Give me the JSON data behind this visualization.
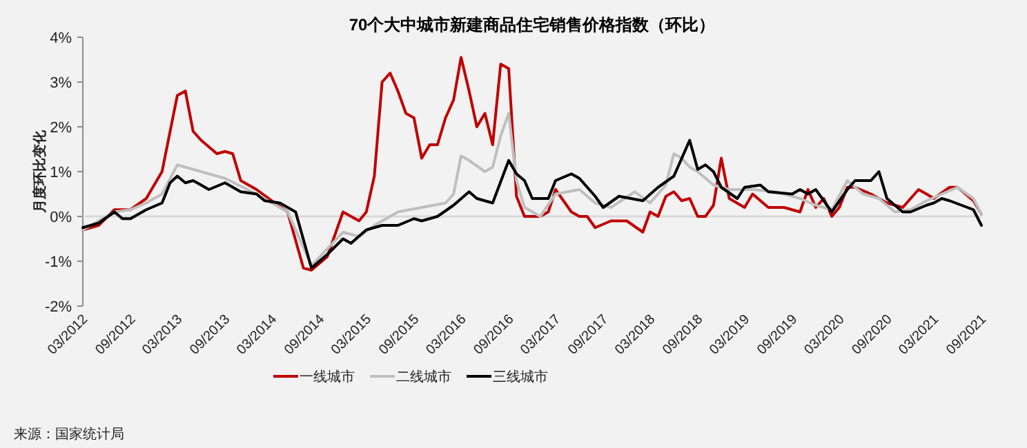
{
  "chart_data": {
    "type": "line",
    "title": "70个大中城市新建商品住宅销售价格指数（环比）",
    "ylabel": "月度环比变化",
    "annotations": [
      "来源：国家统计局"
    ],
    "xlim": [
      "2012-03",
      "2021-09"
    ],
    "xticks": [
      {
        "value": "2012-03",
        "label": "03/2012"
      },
      {
        "value": "2012-09",
        "label": "09/2012"
      },
      {
        "value": "2013-03",
        "label": "03/2013"
      },
      {
        "value": "2013-09",
        "label": "09/2013"
      },
      {
        "value": "2014-03",
        "label": "03/2014"
      },
      {
        "value": "2014-09",
        "label": "09/2014"
      },
      {
        "value": "2015-03",
        "label": "03/2015"
      },
      {
        "value": "2015-09",
        "label": "09/2015"
      },
      {
        "value": "2016-03",
        "label": "03/2016"
      },
      {
        "value": "2016-09",
        "label": "09/2016"
      },
      {
        "value": "2017-03",
        "label": "03/2017"
      },
      {
        "value": "2017-09",
        "label": "09/2017"
      },
      {
        "value": "2018-03",
        "label": "03/2018"
      },
      {
        "value": "2018-09",
        "label": "09/2018"
      },
      {
        "value": "2019-03",
        "label": "03/2019"
      },
      {
        "value": "2019-09",
        "label": "09/2019"
      },
      {
        "value": "2020-03",
        "label": "03/2020"
      },
      {
        "value": "2020-09",
        "label": "09/2020"
      },
      {
        "value": "2021-03",
        "label": "03/2021"
      },
      {
        "value": "2021-09",
        "label": "09/2021"
      }
    ],
    "ylim": [
      -2,
      4
    ],
    "yticks": [
      {
        "value": -2,
        "label": "-2%"
      },
      {
        "value": -1,
        "label": "-1%"
      },
      {
        "value": 0,
        "label": "0%"
      },
      {
        "value": 1,
        "label": "1%"
      },
      {
        "value": 2,
        "label": "2%"
      },
      {
        "value": 3,
        "label": "3%"
      },
      {
        "value": 4,
        "label": "4%"
      }
    ],
    "ref_lines": [
      {
        "axis": "y",
        "value": 0,
        "color": "#d9d9d9"
      }
    ],
    "legend": "bottom",
    "marker": "none",
    "line_style": "solid",
    "series": [
      {
        "name": "一线城市",
        "color": "#c00000",
        "x": [
          "2012-03",
          "2012-05",
          "2012-07",
          "2012-09",
          "2012-11",
          "2013-01",
          "2013-03",
          "2013-04",
          "2013-05",
          "2013-06",
          "2013-08",
          "2013-09",
          "2013-10",
          "2013-11",
          "2014-01",
          "2014-03",
          "2014-05",
          "2014-07",
          "2014-08",
          "2014-10",
          "2014-12",
          "2015-02",
          "2015-03",
          "2015-04",
          "2015-05",
          "2015-06",
          "2015-07",
          "2015-08",
          "2015-09",
          "2015-10",
          "2015-11",
          "2015-12",
          "2016-01",
          "2016-02",
          "2016-03",
          "2016-04",
          "2016-05",
          "2016-06",
          "2016-07",
          "2016-08",
          "2016-09",
          "2016-10",
          "2016-11",
          "2017-01",
          "2017-02",
          "2017-03",
          "2017-05",
          "2017-06",
          "2017-07",
          "2017-08",
          "2017-10",
          "2017-12",
          "2018-02",
          "2018-03",
          "2018-04",
          "2018-05",
          "2018-06",
          "2018-07",
          "2018-08",
          "2018-09",
          "2018-10",
          "2018-11",
          "2018-12",
          "2019-01",
          "2019-03",
          "2019-04",
          "2019-06",
          "2019-08",
          "2019-10",
          "2019-11",
          "2019-12",
          "2020-01",
          "2020-02",
          "2020-03",
          "2020-04",
          "2020-05",
          "2020-07",
          "2020-09",
          "2020-11",
          "2021-01",
          "2021-02",
          "2021-03",
          "2021-05",
          "2021-06",
          "2021-08",
          "2021-09"
        ],
        "values": [
          -0.3,
          -0.2,
          0.15,
          0.15,
          0.4,
          1.0,
          2.7,
          2.8,
          1.9,
          1.7,
          1.4,
          1.45,
          1.4,
          0.8,
          0.6,
          0.35,
          0.1,
          -1.15,
          -1.2,
          -0.9,
          0.1,
          -0.1,
          0.1,
          0.9,
          3.0,
          3.2,
          2.8,
          2.3,
          2.2,
          1.3,
          1.6,
          1.6,
          2.2,
          2.6,
          3.55,
          2.8,
          2.0,
          2.3,
          1.6,
          3.4,
          3.3,
          0.45,
          0.0,
          0.0,
          0.1,
          0.6,
          0.1,
          0.0,
          0.0,
          -0.25,
          -0.1,
          -0.1,
          -0.35,
          0.1,
          0.0,
          0.45,
          0.55,
          0.35,
          0.4,
          0.0,
          0.0,
          0.25,
          1.3,
          0.4,
          0.2,
          0.5,
          0.2,
          0.2,
          0.1,
          0.6,
          0.2,
          0.4,
          0.0,
          0.2,
          0.65,
          0.65,
          0.5,
          0.3,
          0.2,
          0.6,
          0.5,
          0.4,
          0.65,
          0.65,
          0.35,
          0.05
        ]
      },
      {
        "name": "二线城市",
        "color": "#bfbfbf",
        "x": [
          "2012-03",
          "2012-07",
          "2012-09",
          "2012-11",
          "2013-01",
          "2013-03",
          "2013-05",
          "2013-09",
          "2014-01",
          "2014-05",
          "2014-08",
          "2014-12",
          "2015-02",
          "2015-04",
          "2015-07",
          "2015-10",
          "2016-01",
          "2016-02",
          "2016-03",
          "2016-04",
          "2016-06",
          "2016-07",
          "2016-08",
          "2016-09",
          "2016-10",
          "2016-11",
          "2017-01",
          "2017-03",
          "2017-06",
          "2017-08",
          "2017-10",
          "2018-01",
          "2018-03",
          "2018-05",
          "2018-06",
          "2018-07",
          "2018-08",
          "2018-09",
          "2018-11",
          "2019-01",
          "2019-04",
          "2019-07",
          "2019-10",
          "2019-12",
          "2020-02",
          "2020-04",
          "2020-06",
          "2020-08",
          "2020-10",
          "2020-12",
          "2021-02",
          "2021-04",
          "2021-06",
          "2021-08",
          "2021-09"
        ],
        "values": [
          -0.3,
          0.1,
          0.15,
          0.3,
          0.5,
          1.15,
          1.05,
          0.85,
          0.5,
          0.1,
          -1.1,
          -0.35,
          -0.45,
          -0.2,
          0.1,
          0.2,
          0.3,
          0.5,
          1.35,
          1.25,
          1.0,
          1.1,
          1.8,
          2.3,
          0.8,
          0.2,
          0.0,
          0.5,
          0.6,
          0.3,
          0.2,
          0.55,
          0.3,
          0.7,
          1.4,
          1.3,
          1.1,
          1.0,
          0.7,
          0.6,
          0.6,
          0.55,
          0.4,
          0.25,
          0.15,
          0.8,
          0.5,
          0.4,
          0.1,
          0.15,
          0.35,
          0.5,
          0.65,
          0.4,
          0.05
        ]
      },
      {
        "name": "三线城市",
        "color": "#000000",
        "x": [
          "2012-03",
          "2012-05",
          "2012-07",
          "2012-08",
          "2012-09",
          "2012-11",
          "2013-01",
          "2013-02",
          "2013-03",
          "2013-04",
          "2013-05",
          "2013-06",
          "2013-07",
          "2013-09",
          "2013-11",
          "2014-01",
          "2014-02",
          "2014-04",
          "2014-06",
          "2014-08",
          "2014-10",
          "2014-12",
          "2015-01",
          "2015-03",
          "2015-05",
          "2015-07",
          "2015-09",
          "2015-10",
          "2015-12",
          "2016-02",
          "2016-04",
          "2016-05",
          "2016-07",
          "2016-09",
          "2016-10",
          "2016-11",
          "2016-12",
          "2017-02",
          "2017-03",
          "2017-05",
          "2017-06",
          "2017-08",
          "2017-09",
          "2017-11",
          "2018-02",
          "2018-04",
          "2018-06",
          "2018-08",
          "2018-09",
          "2018-10",
          "2018-11",
          "2018-12",
          "2019-02",
          "2019-03",
          "2019-05",
          "2019-06",
          "2019-09",
          "2019-10",
          "2019-11",
          "2019-12",
          "2020-02",
          "2020-04",
          "2020-05",
          "2020-07",
          "2020-08",
          "2020-09",
          "2020-11",
          "2020-12",
          "2021-02",
          "2021-03",
          "2021-04",
          "2021-05",
          "2021-08",
          "2021-09"
        ],
        "values": [
          -0.25,
          -0.15,
          0.1,
          -0.05,
          -0.05,
          0.15,
          0.3,
          0.75,
          0.9,
          0.75,
          0.8,
          0.7,
          0.6,
          0.75,
          0.55,
          0.5,
          0.35,
          0.3,
          0.1,
          -1.15,
          -0.85,
          -0.5,
          -0.6,
          -0.3,
          -0.2,
          -0.2,
          -0.05,
          -0.1,
          0.0,
          0.25,
          0.55,
          0.4,
          0.3,
          1.25,
          0.95,
          0.8,
          0.4,
          0.4,
          0.8,
          0.95,
          0.85,
          0.45,
          0.2,
          0.45,
          0.35,
          0.65,
          0.9,
          1.7,
          1.05,
          1.15,
          1.0,
          0.65,
          0.4,
          0.65,
          0.7,
          0.55,
          0.5,
          0.6,
          0.5,
          0.6,
          0.1,
          0.6,
          0.8,
          0.8,
          1.0,
          0.4,
          0.1,
          0.1,
          0.25,
          0.3,
          0.4,
          0.35,
          0.15,
          -0.2
        ]
      }
    ]
  }
}
